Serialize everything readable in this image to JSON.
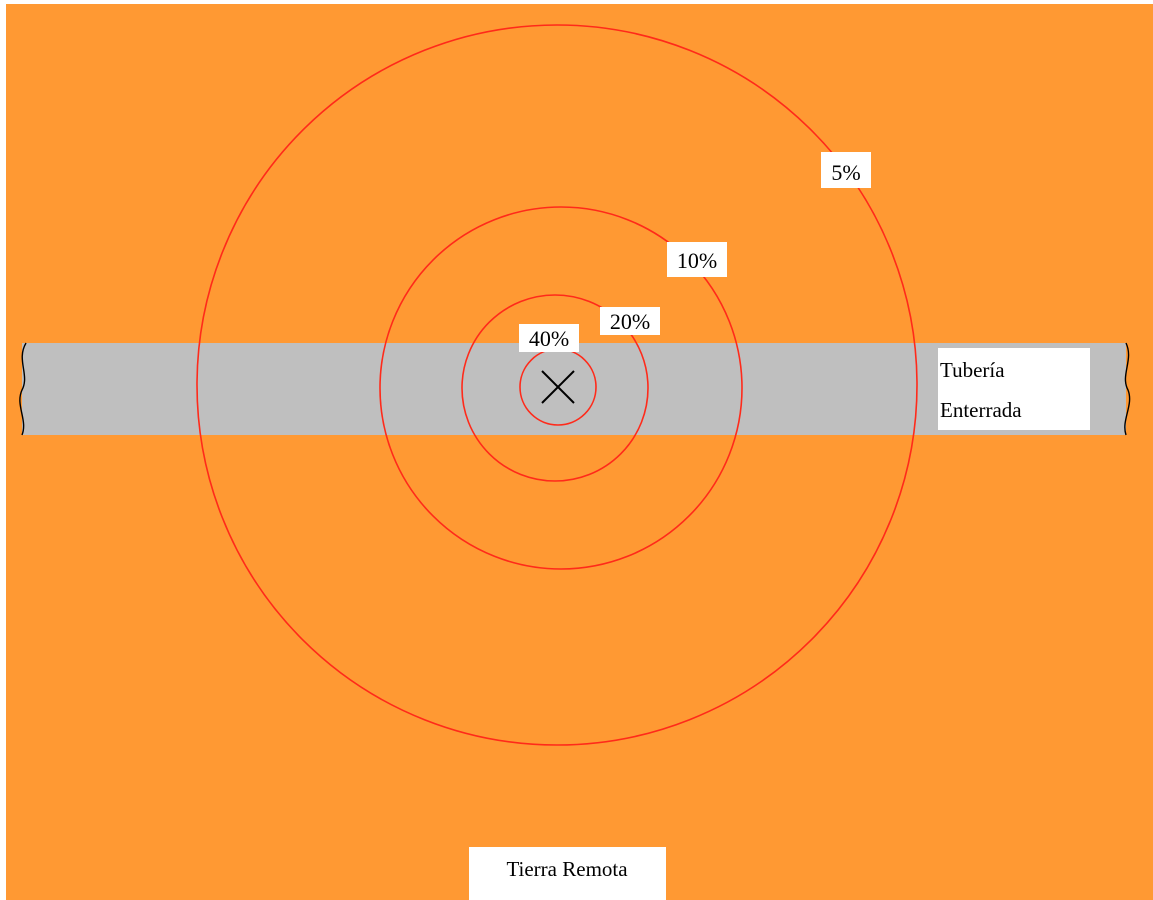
{
  "colors": {
    "soil": "#FF9933",
    "pipe": "#BFBFBF",
    "contour": "#FF2A1A",
    "label_bg": "#FFFFFF",
    "text": "#000000"
  },
  "contours": [
    {
      "label": "5%"
    },
    {
      "label": "10%"
    },
    {
      "label": "20%"
    },
    {
      "label": "40%"
    }
  ],
  "pipe": {
    "label_line1": "Tubería",
    "label_line2": "Enterrada"
  },
  "source_marker": {
    "icon": "x-cross-icon"
  },
  "remote_earth": {
    "label": "Tierra Remota"
  }
}
